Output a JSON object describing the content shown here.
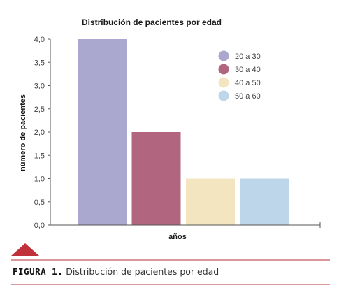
{
  "chart_data": {
    "type": "bar",
    "title": "Distribución de pacientes por edad",
    "xlabel": "años",
    "ylabel": "número de pacientes",
    "ylim": [
      0,
      4
    ],
    "yticks": [
      "0,0",
      "0,5",
      "1,0",
      "1,5",
      "2,0",
      "2,5",
      "3,0",
      "3,5",
      "4,0"
    ],
    "categories": [
      "20 a 30",
      "30 a 40",
      "40 a 50",
      "50 a 60"
    ],
    "values": [
      4,
      2,
      1,
      1
    ],
    "colors": [
      "#aaa8cf",
      "#b1657e",
      "#f2e5c0",
      "#bdd6ea"
    ],
    "legend_position": "top-right",
    "grid": false
  },
  "caption": {
    "prefix": "FIGURA 1.",
    "text": "Distribución de pacientes por edad"
  },
  "accents": {
    "rule_color": "#b0313a",
    "triangle_color": "#c0313a"
  }
}
